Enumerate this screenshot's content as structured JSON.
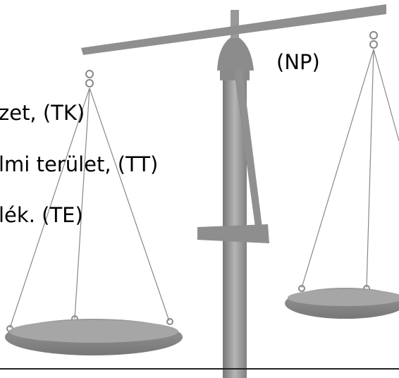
{
  "lines": [
    "(NP)",
    "zet, (TK)",
    "lmi terület, (TT)",
    "lék. (TE)"
  ]
}
